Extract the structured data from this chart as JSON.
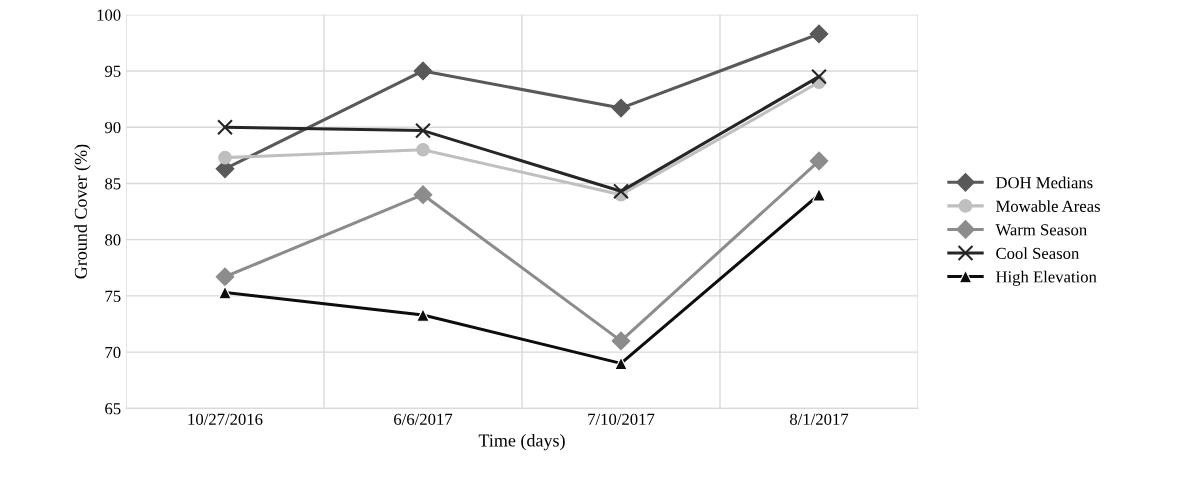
{
  "chart_data": {
    "type": "line",
    "xlabel": "Time (days)",
    "ylabel": "Ground Cover (%)",
    "categories": [
      "10/27/2016",
      "6/6/2017",
      "7/10/2017",
      "8/1/2017"
    ],
    "series": [
      {
        "name": "DOH Medians",
        "color": "#595959",
        "marker": "diamond",
        "values": [
          86.3,
          95.0,
          91.7,
          98.3
        ]
      },
      {
        "name": "Mowable Areas",
        "color": "#bfbfbf",
        "marker": "circle",
        "values": [
          87.3,
          88.0,
          84.0,
          94.0
        ]
      },
      {
        "name": "Warm Season",
        "color": "#8c8c8c",
        "marker": "diamond",
        "values": [
          76.7,
          84.0,
          71.0,
          87.0
        ]
      },
      {
        "name": "Cool Season",
        "color": "#262626",
        "marker": "cross",
        "values": [
          90.0,
          89.7,
          84.3,
          94.5
        ]
      },
      {
        "name": "High Elevation",
        "color": "#0d0d0d",
        "marker": "triangle",
        "values": [
          75.3,
          73.3,
          69.0,
          84.0
        ]
      }
    ],
    "ylim": [
      65,
      100
    ],
    "yticks": [
      65,
      70,
      75,
      80,
      85,
      90,
      95,
      100
    ],
    "grid": true,
    "legend": "right",
    "line_style": "solid"
  }
}
